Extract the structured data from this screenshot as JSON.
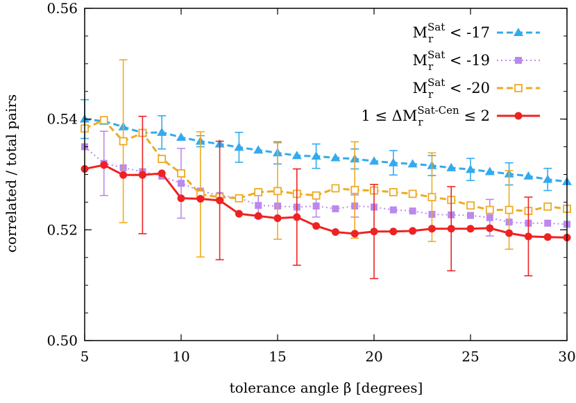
{
  "chart_data": {
    "type": "line",
    "xlabel": "tolerance angle β [degrees]",
    "ylabel": "correlated  / total pairs",
    "xlim": [
      5,
      30
    ],
    "ylim": [
      0.5,
      0.56
    ],
    "xticks": [
      5,
      10,
      15,
      20,
      25,
      30
    ],
    "xtick_labels": [
      "5",
      "10",
      "15",
      "20",
      "25",
      "30"
    ],
    "yticks": [
      0.5,
      0.52,
      0.54,
      0.56
    ],
    "ytick_labels": [
      "0.50",
      "0.52",
      "0.54",
      "0.56"
    ],
    "grid": false,
    "legend_position": "top-right",
    "legend": [
      {
        "main": "M",
        "sub": "r",
        "sup": "Sat",
        "tail": " < -17"
      },
      {
        "main": "M",
        "sub": "r",
        "sup": "Sat",
        "tail": " < -19"
      },
      {
        "main": "M",
        "sub": "r",
        "sup": "Sat",
        "tail": " < -20"
      },
      {
        "pre": "1 ≤ ΔM",
        "sub": "r",
        "sup": "Sat-Cen",
        "tail": " ≤ 2"
      }
    ],
    "x": [
      5,
      6,
      7,
      8,
      9,
      10,
      11,
      12,
      13,
      14,
      15,
      16,
      17,
      18,
      19,
      20,
      21,
      22,
      23,
      24,
      25,
      26,
      27,
      28,
      29,
      30
    ],
    "series": [
      {
        "color": "#33aaee",
        "style": "dashed",
        "marker": "triangle",
        "values": [
          0.54,
          0.5396,
          0.5386,
          0.5375,
          0.5376,
          0.5367,
          0.536,
          0.5355,
          0.5349,
          0.5344,
          0.5339,
          0.5334,
          0.5333,
          0.533,
          0.5328,
          0.5324,
          0.5321,
          0.5319,
          0.5316,
          0.5312,
          0.5309,
          0.5305,
          0.5301,
          0.5297,
          0.5291,
          0.5287
        ],
        "errors": [
          0.0035,
          0,
          0,
          0,
          0.003,
          0,
          0.001,
          0,
          0.0027,
          0,
          0.002,
          0,
          0.0022,
          0,
          0.0018,
          0,
          0.0022,
          0,
          0.0018,
          0,
          0.002,
          0,
          0.002,
          0,
          0.002,
          0
        ]
      },
      {
        "color": "#bb88ee",
        "style": "dotted",
        "marker": "filled-square",
        "values": [
          0.535,
          0.532,
          0.5312,
          0.5305,
          0.5297,
          0.5284,
          0.527,
          0.5262,
          0.5258,
          0.5244,
          0.5243,
          0.5241,
          0.5243,
          0.5238,
          0.5243,
          0.5241,
          0.5236,
          0.5234,
          0.5228,
          0.5227,
          0.5226,
          0.5222,
          0.5214,
          0.5212,
          0.5212,
          0.521
        ],
        "errors": [
          0,
          0.0058,
          0,
          0,
          0,
          0.0063,
          0,
          0,
          0,
          0.0023,
          0,
          0,
          0.002,
          0,
          0.002,
          0,
          0,
          0,
          0,
          0,
          0,
          0.0033,
          0,
          0,
          0,
          0
        ]
      },
      {
        "color": "#eeaa22",
        "style": "dashed",
        "marker": "open-square",
        "values": [
          0.5383,
          0.5398,
          0.536,
          0.5375,
          0.5328,
          0.5302,
          0.5264,
          0.5259,
          0.5257,
          0.5268,
          0.527,
          0.5265,
          0.5262,
          0.5275,
          0.5272,
          0.5271,
          0.5268,
          0.5265,
          0.5259,
          0.5254,
          0.5244,
          0.5236,
          0.5236,
          0.5234,
          0.5242,
          0.5238
        ],
        "errors": [
          0,
          0,
          0.0147,
          0,
          0,
          0,
          0.0113,
          0,
          0,
          0,
          0.0087,
          0,
          0,
          0,
          0.0087,
          0,
          0,
          0,
          0.008,
          0,
          0,
          0,
          0.0071,
          0,
          0,
          0
        ]
      },
      {
        "color": "#ee2222",
        "style": "solid",
        "marker": "filled-circle",
        "values": [
          0.531,
          0.5317,
          0.5299,
          0.5299,
          0.5302,
          0.5257,
          0.5256,
          0.5253,
          0.5229,
          0.5225,
          0.5221,
          0.5223,
          0.5207,
          0.5196,
          0.5193,
          0.5197,
          0.5197,
          0.5198,
          0.5202,
          0.5202,
          0.5202,
          0.5203,
          0.5194,
          0.5188,
          0.5187,
          0.5186
        ],
        "errors": [
          0,
          0,
          0,
          0.0106,
          0,
          0,
          0,
          0.0107,
          0,
          0,
          0,
          0.0087,
          0,
          0,
          0,
          0.0085,
          0,
          0,
          0,
          0.0076,
          0,
          0,
          0,
          0.0071,
          0,
          0
        ]
      }
    ]
  }
}
